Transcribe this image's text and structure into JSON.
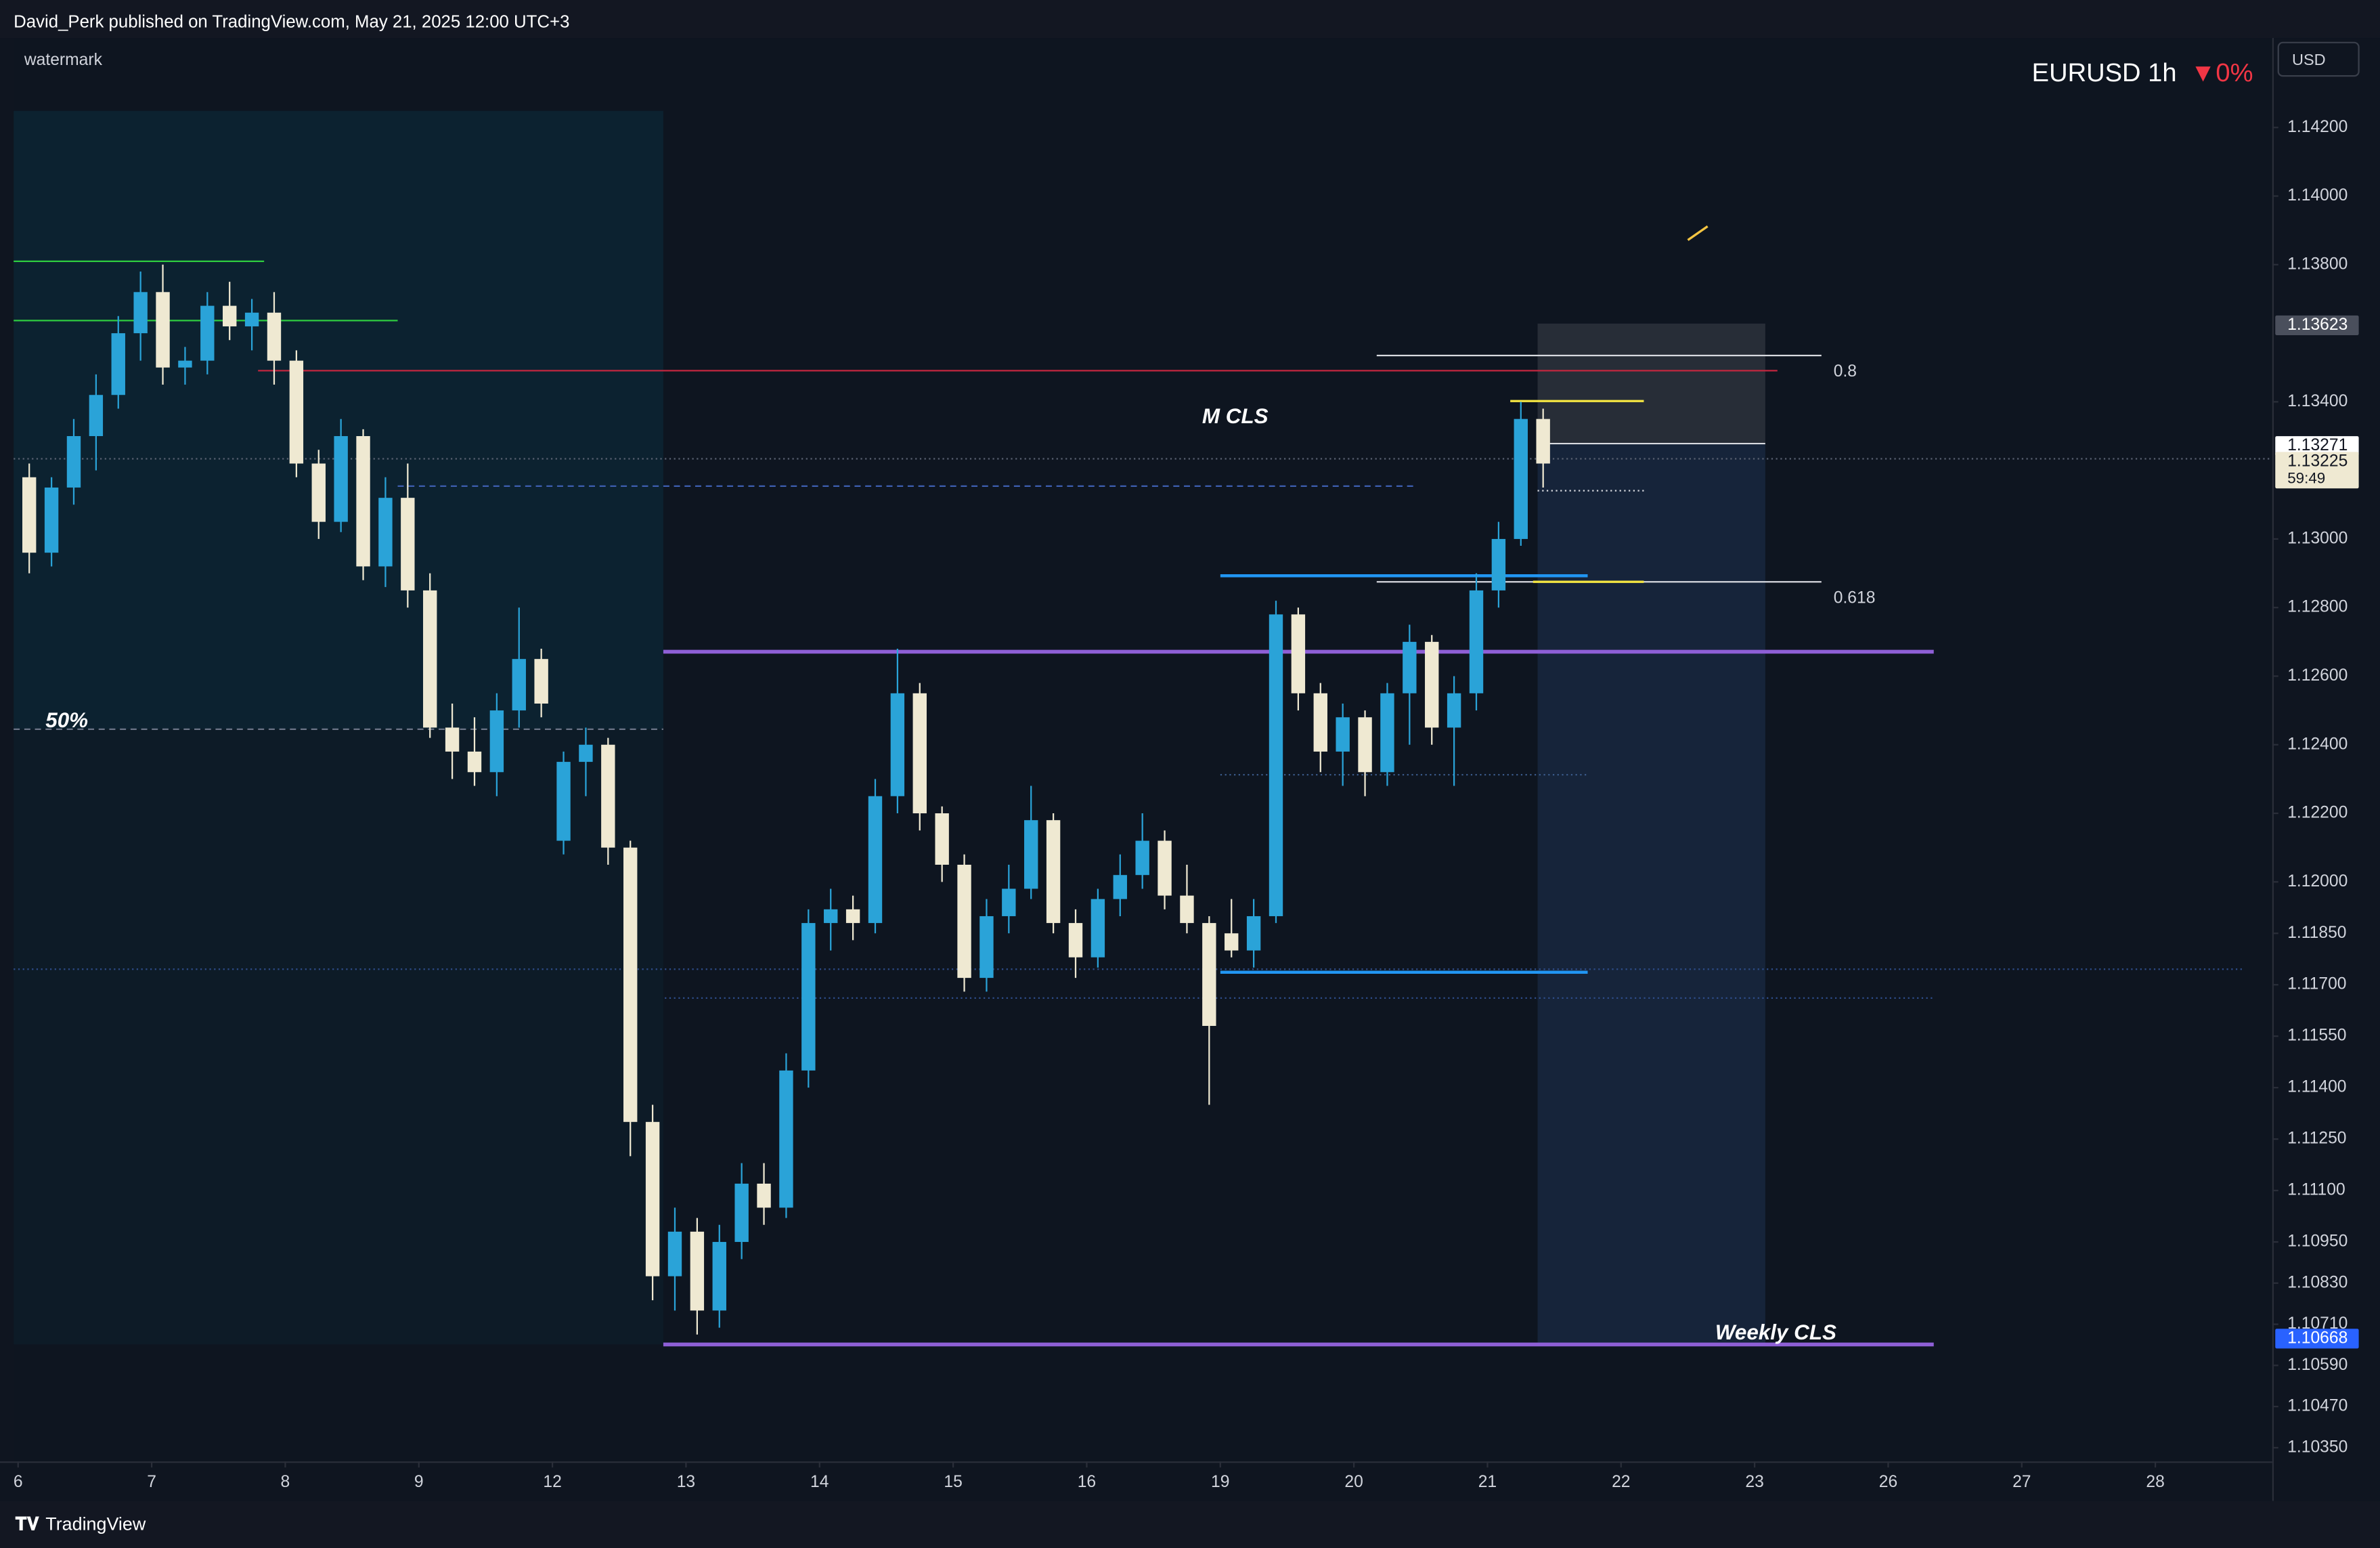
{
  "header": {
    "publisher": "David_Perk published on TradingView.com, May 21, 2025 12:00 UTC+3",
    "watermark": "watermark"
  },
  "footer": {
    "brand": "TradingView"
  },
  "chart_data": {
    "type": "candlestick",
    "title": "EURUSD 1h",
    "change": "▼0%",
    "currency": "USD",
    "up_color": "#2aa3d8",
    "down_color": "#efe9d2",
    "x": [
      2,
      6,
      10,
      14,
      18,
      22,
      26,
      30,
      34,
      38,
      42,
      46,
      50,
      54,
      58,
      62,
      66,
      70,
      74,
      78,
      82,
      86,
      90,
      94,
      98,
      102,
      106,
      110,
      114,
      118,
      122,
      126,
      130,
      134,
      138,
      142,
      146,
      150,
      154,
      158,
      162,
      166,
      170,
      174,
      178,
      182,
      186,
      190,
      194,
      198,
      202,
      206,
      210,
      214,
      218,
      222,
      226,
      230,
      234,
      238,
      242,
      246,
      250,
      254,
      258,
      262,
      266,
      270,
      274
    ],
    "open": [
      1.1318,
      1.1296,
      1.1315,
      1.133,
      1.1342,
      1.136,
      1.1372,
      1.135,
      1.1352,
      1.1368,
      1.1362,
      1.1366,
      1.1352,
      1.1322,
      1.1305,
      1.133,
      1.1292,
      1.1312,
      1.1285,
      1.1245,
      1.1238,
      1.1232,
      1.125,
      1.1265,
      1.1212,
      1.1235,
      1.124,
      1.121,
      1.113,
      1.1085,
      1.1098,
      1.1075,
      1.1095,
      1.1112,
      1.1105,
      1.1145,
      1.1188,
      1.1192,
      1.1188,
      1.1225,
      1.1255,
      1.122,
      1.1205,
      1.1172,
      1.119,
      1.1198,
      1.1218,
      1.1188,
      1.1178,
      1.1195,
      1.1202,
      1.1212,
      1.1196,
      1.1188,
      1.1185,
      1.118,
      1.119,
      1.1278,
      1.1255,
      1.1238,
      1.1248,
      1.1232,
      1.1255,
      1.127,
      1.1245,
      1.1255,
      1.1285,
      1.13,
      1.1335
    ],
    "high": [
      1.1322,
      1.1318,
      1.1335,
      1.1348,
      1.1365,
      1.1378,
      1.138,
      1.1356,
      1.1372,
      1.1375,
      1.137,
      1.1372,
      1.1355,
      1.1326,
      1.1335,
      1.1332,
      1.1318,
      1.1322,
      1.129,
      1.1252,
      1.1248,
      1.1255,
      1.128,
      1.1268,
      1.1238,
      1.1245,
      1.1242,
      1.1212,
      1.1135,
      1.1105,
      1.1102,
      1.11,
      1.1118,
      1.1118,
      1.115,
      1.1192,
      1.1198,
      1.1196,
      1.123,
      1.1268,
      1.1258,
      1.1222,
      1.1208,
      1.1195,
      1.1205,
      1.1228,
      1.122,
      1.1192,
      1.1198,
      1.1208,
      1.122,
      1.1215,
      1.1205,
      1.119,
      1.1195,
      1.1195,
      1.1282,
      1.128,
      1.1258,
      1.1252,
      1.125,
      1.1258,
      1.1275,
      1.1272,
      1.126,
      1.129,
      1.1305,
      1.134,
      1.1338
    ],
    "low": [
      1.129,
      1.1292,
      1.131,
      1.132,
      1.1338,
      1.1352,
      1.1345,
      1.1345,
      1.1348,
      1.1358,
      1.1355,
      1.1345,
      1.1318,
      1.13,
      1.1302,
      1.1288,
      1.1286,
      1.128,
      1.1242,
      1.123,
      1.1228,
      1.1225,
      1.1245,
      1.1248,
      1.1208,
      1.1225,
      1.1205,
      1.112,
      1.1078,
      1.1075,
      1.1068,
      1.107,
      1.109,
      1.11,
      1.1102,
      1.114,
      1.118,
      1.1183,
      1.1185,
      1.122,
      1.1215,
      1.12,
      1.1168,
      1.1168,
      1.1185,
      1.1195,
      1.1185,
      1.1172,
      1.1175,
      1.119,
      1.1198,
      1.1192,
      1.1185,
      1.1135,
      1.1178,
      1.1175,
      1.1188,
      1.125,
      1.1232,
      1.1228,
      1.1225,
      1.1228,
      1.124,
      1.124,
      1.1228,
      1.125,
      1.128,
      1.1298,
      1.1315
    ],
    "close": [
      1.1296,
      1.1315,
      1.133,
      1.1342,
      1.136,
      1.1372,
      1.135,
      1.1352,
      1.1368,
      1.1362,
      1.1366,
      1.1352,
      1.1322,
      1.1305,
      1.133,
      1.1292,
      1.1312,
      1.1285,
      1.1245,
      1.1238,
      1.1232,
      1.125,
      1.1265,
      1.1252,
      1.1235,
      1.124,
      1.121,
      1.113,
      1.1085,
      1.1098,
      1.1075,
      1.1095,
      1.1112,
      1.1105,
      1.1145,
      1.1188,
      1.1192,
      1.1188,
      1.1225,
      1.1255,
      1.122,
      1.1205,
      1.1172,
      1.119,
      1.1198,
      1.1218,
      1.1188,
      1.1178,
      1.1195,
      1.1202,
      1.1212,
      1.1196,
      1.1188,
      1.1158,
      1.118,
      1.119,
      1.1278,
      1.1255,
      1.1238,
      1.1248,
      1.1232,
      1.1255,
      1.127,
      1.1245,
      1.1255,
      1.1285,
      1.13,
      1.1335,
      1.1322
    ],
    "xlim": [
      -0.8,
      405
    ],
    "ylim": [
      1.1031,
      1.14461
    ],
    "xticks": [
      {
        "value": 0,
        "label": "6"
      },
      {
        "value": 24,
        "label": "7"
      },
      {
        "value": 48,
        "label": "8"
      },
      {
        "value": 72,
        "label": "9"
      },
      {
        "value": 96,
        "label": "12"
      },
      {
        "value": 120,
        "label": "13"
      },
      {
        "value": 144,
        "label": "14"
      },
      {
        "value": 168,
        "label": "15"
      },
      {
        "value": 192,
        "label": "16"
      },
      {
        "value": 216,
        "label": "19"
      },
      {
        "value": 240,
        "label": "20"
      },
      {
        "value": 264,
        "label": "21"
      },
      {
        "value": 288,
        "label": "22"
      },
      {
        "value": 312,
        "label": "23"
      },
      {
        "value": 336,
        "label": "26"
      },
      {
        "value": 360,
        "label": "27"
      },
      {
        "value": 384,
        "label": "28"
      }
    ],
    "yticks": [
      {
        "value": 1.142,
        "label": "1.14200"
      },
      {
        "value": 1.14,
        "label": "1.14000"
      },
      {
        "value": 1.138,
        "label": "1.13800"
      },
      {
        "value": 1.134,
        "label": "1.13400"
      },
      {
        "value": 1.13,
        "label": "1.13000"
      },
      {
        "value": 1.128,
        "label": "1.12800"
      },
      {
        "value": 1.126,
        "label": "1.12600"
      },
      {
        "value": 1.124,
        "label": "1.12400"
      },
      {
        "value": 1.122,
        "label": "1.12200"
      },
      {
        "value": 1.12,
        "label": "1.12000"
      },
      {
        "value": 1.1185,
        "label": "1.11850"
      },
      {
        "value": 1.117,
        "label": "1.11700"
      },
      {
        "value": 1.1155,
        "label": "1.11550"
      },
      {
        "value": 1.114,
        "label": "1.11400"
      },
      {
        "value": 1.1125,
        "label": "1.11250"
      },
      {
        "value": 1.111,
        "label": "1.11100"
      },
      {
        "value": 1.1095,
        "label": "1.10950"
      },
      {
        "value": 1.1083,
        "label": "1.10830"
      },
      {
        "value": 1.1071,
        "label": "1.10710"
      },
      {
        "value": 1.1059,
        "label": "1.10590"
      },
      {
        "value": 1.1047,
        "label": "1.10470"
      },
      {
        "value": 1.1035,
        "label": "1.10350"
      }
    ],
    "price_labels": [
      {
        "value": 1.13623,
        "label": "1.13623",
        "bg": "#4a4f5c",
        "fg": "#ffffff"
      },
      {
        "value": 1.13271,
        "label": "1.13271",
        "bg": "#ffffff",
        "fg": "#131722"
      },
      {
        "value": 1.13225,
        "label": "1.13225",
        "bg": "#efe9d2",
        "fg": "#131722"
      },
      {
        "value": 1.10668,
        "label": "1.10668",
        "bg": "#2962ff",
        "fg": "#ffffff"
      }
    ],
    "countdown": "59:49",
    "annotations": [
      "M CLS",
      "Weekly CLS",
      "50%",
      "0.8",
      "0.618"
    ]
  }
}
